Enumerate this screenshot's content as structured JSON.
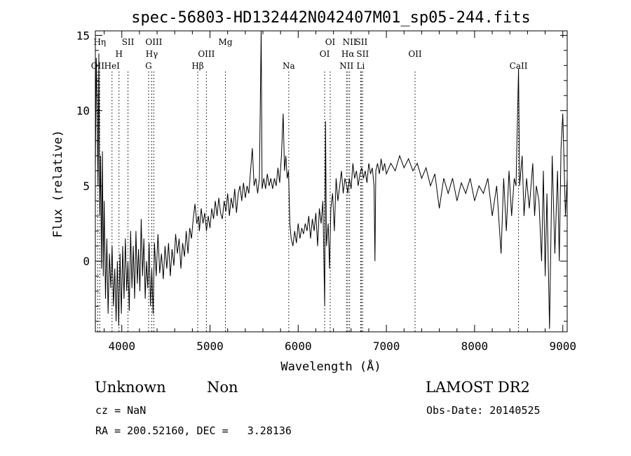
{
  "chart_data": {
    "type": "line",
    "title": "spec-56803-HD132442N042407M01_sp05-244.fits",
    "xlabel": "Wavelength (Å)",
    "ylabel": "Flux (relative)",
    "xlim": [
      3700,
      9050
    ],
    "ylim": [
      -4.7,
      15.3
    ],
    "xticks": [
      4000,
      5000,
      6000,
      7000,
      8000,
      9000
    ],
    "yticks": [
      0,
      5,
      10,
      15
    ],
    "grid": false,
    "line_color": "#000000",
    "marker_color": "#000000",
    "spectrum": [
      [
        3700,
        6.0
      ],
      [
        3710,
        13.5
      ],
      [
        3720,
        10.0
      ],
      [
        3730,
        5.0
      ],
      [
        3740,
        13.8
      ],
      [
        3750,
        3.0
      ],
      [
        3760,
        7.0
      ],
      [
        3770,
        -0.5
      ],
      [
        3780,
        7.3
      ],
      [
        3790,
        -1.0
      ],
      [
        3800,
        4.0
      ],
      [
        3815,
        -2.5
      ],
      [
        3830,
        1.5
      ],
      [
        3845,
        -3.5
      ],
      [
        3860,
        0.5
      ],
      [
        3875,
        -1.8
      ],
      [
        3890,
        1.0
      ],
      [
        3905,
        -3.0
      ],
      [
        3920,
        -0.5
      ],
      [
        3935,
        -4.0
      ],
      [
        3950,
        0.0
      ],
      [
        3965,
        -4.3
      ],
      [
        3980,
        0.5
      ],
      [
        3995,
        -3.5
      ],
      [
        4010,
        1.0
      ],
      [
        4025,
        -2.5
      ],
      [
        4040,
        1.5
      ],
      [
        4055,
        -2.0
      ],
      [
        4070,
        0.0
      ],
      [
        4085,
        -3.3
      ],
      [
        4100,
        2.0
      ],
      [
        4115,
        -1.8
      ],
      [
        4130,
        1.0
      ],
      [
        4145,
        -2.5
      ],
      [
        4160,
        2.0
      ],
      [
        4175,
        -1.5
      ],
      [
        4190,
        0.8
      ],
      [
        4205,
        -2.0
      ],
      [
        4220,
        2.8
      ],
      [
        4235,
        -1.0
      ],
      [
        4250,
        1.5
      ],
      [
        4265,
        -2.5
      ],
      [
        4280,
        0.0
      ],
      [
        4295,
        -1.8
      ],
      [
        4310,
        1.2
      ],
      [
        4325,
        -3.0
      ],
      [
        4340,
        -0.5
      ],
      [
        4355,
        -3.5
      ],
      [
        4370,
        1.2
      ],
      [
        4390,
        -1.0
      ],
      [
        4410,
        1.8
      ],
      [
        4430,
        -0.8
      ],
      [
        4450,
        0.5
      ],
      [
        4470,
        -1.2
      ],
      [
        4490,
        1.0
      ],
      [
        4510,
        -0.5
      ],
      [
        4530,
        1.2
      ],
      [
        4550,
        -1.0
      ],
      [
        4570,
        0.8
      ],
      [
        4590,
        -0.3
      ],
      [
        4610,
        1.8
      ],
      [
        4630,
        0.5
      ],
      [
        4650,
        1.5
      ],
      [
        4670,
        -0.5
      ],
      [
        4690,
        1.2
      ],
      [
        4710,
        0.3
      ],
      [
        4730,
        2.0
      ],
      [
        4750,
        0.5
      ],
      [
        4770,
        2.2
      ],
      [
        4790,
        1.5
      ],
      [
        4810,
        2.8
      ],
      [
        4830,
        3.8
      ],
      [
        4850,
        2.5
      ],
      [
        4870,
        3.0
      ],
      [
        4880,
        2.0
      ],
      [
        4900,
        3.5
      ],
      [
        4920,
        2.5
      ],
      [
        4940,
        3.2
      ],
      [
        4960,
        2.0
      ],
      [
        4980,
        3.0
      ],
      [
        5000,
        2.2
      ],
      [
        5020,
        3.5
      ],
      [
        5040,
        2.8
      ],
      [
        5060,
        4.0
      ],
      [
        5080,
        3.0
      ],
      [
        5100,
        4.2
      ],
      [
        5120,
        3.2
      ],
      [
        5140,
        2.8
      ],
      [
        5160,
        4.0
      ],
      [
        5180,
        3.3
      ],
      [
        5200,
        4.5
      ],
      [
        5220,
        3.0
      ],
      [
        5240,
        4.2
      ],
      [
        5260,
        3.5
      ],
      [
        5280,
        4.8
      ],
      [
        5300,
        3.2
      ],
      [
        5320,
        4.5
      ],
      [
        5340,
        5.0
      ],
      [
        5360,
        4.0
      ],
      [
        5380,
        5.2
      ],
      [
        5400,
        4.2
      ],
      [
        5420,
        5.0
      ],
      [
        5440,
        4.5
      ],
      [
        5460,
        6.0
      ],
      [
        5480,
        7.5
      ],
      [
        5500,
        5.0
      ],
      [
        5520,
        5.5
      ],
      [
        5540,
        4.5
      ],
      [
        5560,
        5.5
      ],
      [
        5580,
        15.4
      ],
      [
        5590,
        4.8
      ],
      [
        5610,
        5.5
      ],
      [
        5630,
        4.8
      ],
      [
        5650,
        5.8
      ],
      [
        5670,
        5.0
      ],
      [
        5690,
        5.5
      ],
      [
        5710,
        4.8
      ],
      [
        5730,
        5.5
      ],
      [
        5750,
        5.0
      ],
      [
        5770,
        6.2
      ],
      [
        5790,
        5.2
      ],
      [
        5810,
        7.0
      ],
      [
        5830,
        9.8
      ],
      [
        5845,
        6.0
      ],
      [
        5860,
        7.0
      ],
      [
        5875,
        5.5
      ],
      [
        5890,
        6.0
      ],
      [
        5905,
        2.5
      ],
      [
        5920,
        1.5
      ],
      [
        5940,
        1.0
      ],
      [
        5960,
        2.0
      ],
      [
        5980,
        1.2
      ],
      [
        6000,
        2.5
      ],
      [
        6020,
        1.5
      ],
      [
        6040,
        2.2
      ],
      [
        6060,
        1.8
      ],
      [
        6080,
        2.5
      ],
      [
        6100,
        2.0
      ],
      [
        6120,
        3.0
      ],
      [
        6140,
        1.5
      ],
      [
        6160,
        2.8
      ],
      [
        6180,
        2.0
      ],
      [
        6200,
        3.2
      ],
      [
        6220,
        1.0
      ],
      [
        6240,
        3.5
      ],
      [
        6260,
        2.5
      ],
      [
        6280,
        4.0
      ],
      [
        6300,
        -3.0
      ],
      [
        6310,
        9.3
      ],
      [
        6320,
        1.0
      ],
      [
        6340,
        2.5
      ],
      [
        6355,
        -0.5
      ],
      [
        6370,
        3.5
      ],
      [
        6390,
        4.5
      ],
      [
        6410,
        2.0
      ],
      [
        6430,
        5.5
      ],
      [
        6450,
        4.0
      ],
      [
        6470,
        5.0
      ],
      [
        6490,
        6.0
      ],
      [
        6510,
        4.5
      ],
      [
        6530,
        5.5
      ],
      [
        6550,
        5.0
      ],
      [
        6563,
        4.5
      ],
      [
        6580,
        5.5
      ],
      [
        6600,
        4.8
      ],
      [
        6620,
        6.5
      ],
      [
        6640,
        5.5
      ],
      [
        6660,
        6.0
      ],
      [
        6680,
        5.0
      ],
      [
        6700,
        5.8
      ],
      [
        6720,
        6.2
      ],
      [
        6740,
        5.5
      ],
      [
        6760,
        6.0
      ],
      [
        6780,
        5.2
      ],
      [
        6800,
        6.5
      ],
      [
        6820,
        5.8
      ],
      [
        6840,
        6.2
      ],
      [
        6860,
        5.0
      ],
      [
        6870,
        0.0
      ],
      [
        6880,
        6.0
      ],
      [
        6900,
        6.5
      ],
      [
        6920,
        5.8
      ],
      [
        6940,
        6.8
      ],
      [
        6960,
        6.0
      ],
      [
        6980,
        6.5
      ],
      [
        7000,
        5.8
      ],
      [
        7050,
        6.5
      ],
      [
        7100,
        6.0
      ],
      [
        7150,
        7.0
      ],
      [
        7200,
        6.2
      ],
      [
        7250,
        6.8
      ],
      [
        7300,
        6.0
      ],
      [
        7350,
        6.5
      ],
      [
        7400,
        5.5
      ],
      [
        7450,
        6.2
      ],
      [
        7500,
        5.0
      ],
      [
        7550,
        5.8
      ],
      [
        7600,
        3.5
      ],
      [
        7650,
        5.5
      ],
      [
        7700,
        4.5
      ],
      [
        7750,
        5.5
      ],
      [
        7800,
        4.0
      ],
      [
        7850,
        5.2
      ],
      [
        7900,
        4.5
      ],
      [
        7950,
        5.5
      ],
      [
        8000,
        4.0
      ],
      [
        8050,
        5.0
      ],
      [
        8100,
        4.5
      ],
      [
        8150,
        5.5
      ],
      [
        8200,
        3.0
      ],
      [
        8250,
        5.0
      ],
      [
        8300,
        0.5
      ],
      [
        8330,
        5.5
      ],
      [
        8360,
        2.0
      ],
      [
        8390,
        6.0
      ],
      [
        8420,
        3.0
      ],
      [
        8450,
        5.5
      ],
      [
        8470,
        5.0
      ],
      [
        8498,
        12.8
      ],
      [
        8510,
        5.0
      ],
      [
        8540,
        7.0
      ],
      [
        8560,
        3.0
      ],
      [
        8590,
        5.5
      ],
      [
        8620,
        3.5
      ],
      [
        8660,
        6.5
      ],
      [
        8680,
        3.0
      ],
      [
        8700,
        5.0
      ],
      [
        8730,
        4.0
      ],
      [
        8760,
        0.0
      ],
      [
        8780,
        6.0
      ],
      [
        8800,
        -1.0
      ],
      [
        8820,
        4.5
      ],
      [
        8850,
        -4.5
      ],
      [
        8880,
        7.0
      ],
      [
        8910,
        0.5
      ],
      [
        8940,
        6.0
      ],
      [
        8960,
        0.0
      ],
      [
        8980,
        7.5
      ],
      [
        9000,
        9.8
      ],
      [
        9030,
        3.0
      ],
      [
        9050,
        5.5
      ]
    ],
    "line_markers": [
      {
        "wavelength": 3727,
        "row": 3,
        "label": "OII"
      },
      {
        "wavelength": 3750,
        "row": 1,
        "label": "Hη"
      },
      {
        "wavelength": 3889,
        "row": 3,
        "label": "HeI"
      },
      {
        "wavelength": 3968,
        "row": 2,
        "label": "H"
      },
      {
        "wavelength": 4070,
        "row": 1,
        "label": "SII"
      },
      {
        "wavelength": 4304,
        "row": 3,
        "label": "G"
      },
      {
        "wavelength": 4340,
        "row": 2,
        "label": "Hγ"
      },
      {
        "wavelength": 4363,
        "row": 1,
        "label": "OIII"
      },
      {
        "wavelength": 4861,
        "row": 3,
        "label": "Hβ"
      },
      {
        "wavelength": 4959,
        "row": 2,
        "label": "OIII"
      },
      {
        "wavelength": 5175,
        "row": 1,
        "label": "Mg"
      },
      {
        "wavelength": 5893,
        "row": 3,
        "label": "Na"
      },
      {
        "wavelength": 6300,
        "row": 2,
        "label": "OI"
      },
      {
        "wavelength": 6363,
        "row": 1,
        "label": "OI"
      },
      {
        "wavelength": 6548,
        "row": 3,
        "label": "NII"
      },
      {
        "wavelength": 6563,
        "row": 2,
        "label": "Hα"
      },
      {
        "wavelength": 6583,
        "row": 1,
        "label": "NII"
      },
      {
        "wavelength": 6716,
        "row": 1,
        "label": "SII"
      },
      {
        "wavelength": 6731,
        "row": 2,
        "label": "SII"
      },
      {
        "wavelength": 6708,
        "row": 3,
        "label": "Li"
      },
      {
        "wavelength": 7325,
        "row": 2,
        "label": "OII"
      },
      {
        "wavelength": 8498,
        "row": 3,
        "label": "CaII"
      }
    ]
  },
  "info": {
    "class": "Unknown",
    "subclass": "Non",
    "survey": "LAMOST DR2",
    "cz": "cz = NaN",
    "obs_date": "Obs-Date: 20140525",
    "coords": "RA = 200.52160, DEC =   3.28136"
  }
}
